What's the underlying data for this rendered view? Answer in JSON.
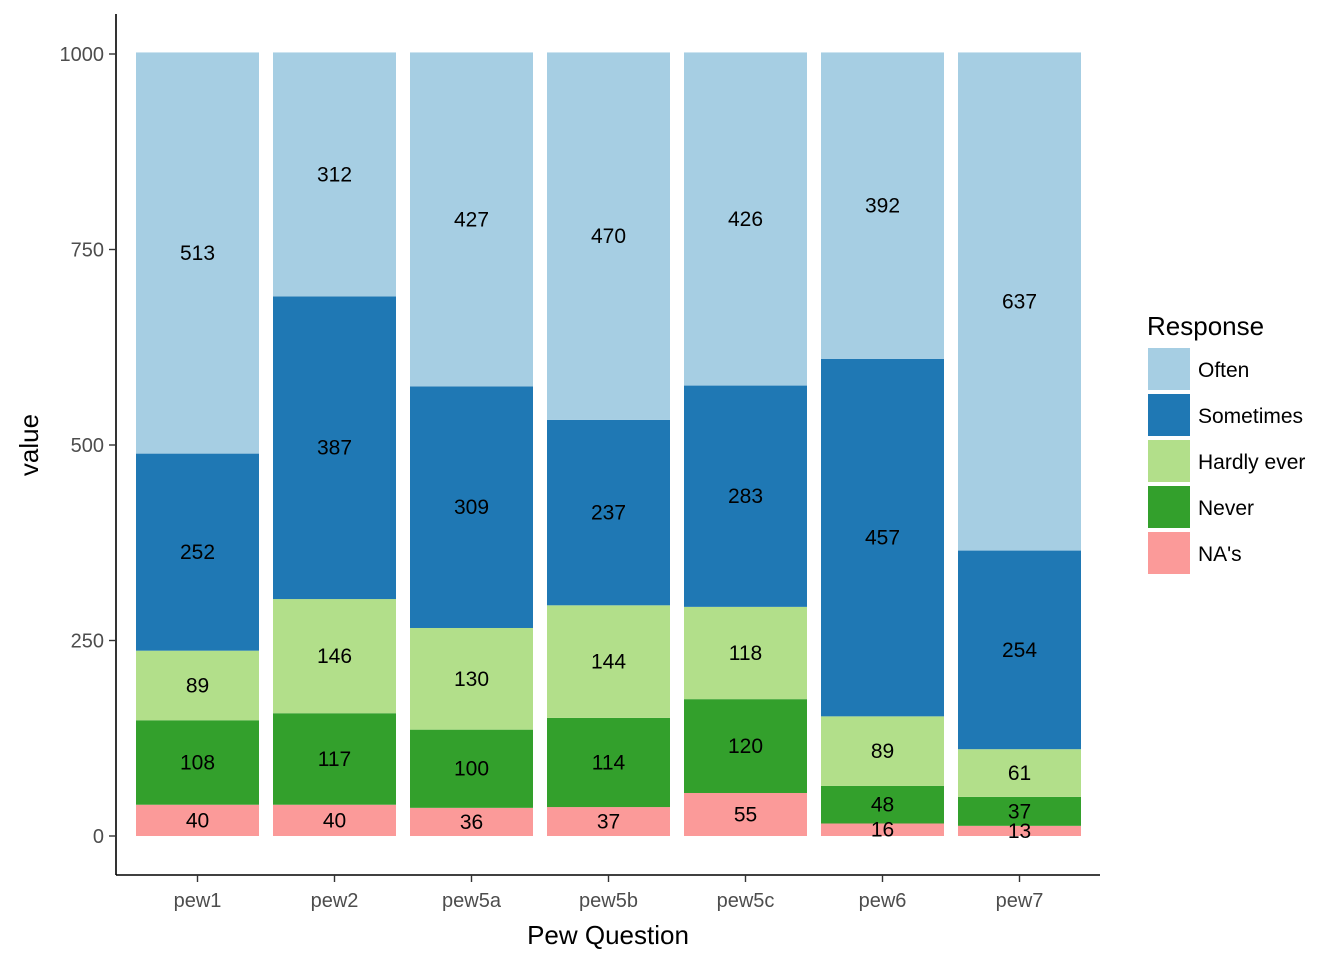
{
  "chart_data": {
    "type": "bar",
    "stacked": true,
    "categories": [
      "pew1",
      "pew2",
      "pew5a",
      "pew5b",
      "pew5c",
      "pew6",
      "pew7"
    ],
    "series": [
      {
        "name": "NA's",
        "color": "#fb9a99",
        "values": [
          40,
          40,
          36,
          37,
          55,
          16,
          13
        ]
      },
      {
        "name": "Never",
        "color": "#33a02c",
        "values": [
          108,
          117,
          100,
          114,
          120,
          48,
          37
        ]
      },
      {
        "name": "Hardly ever",
        "color": "#b2df8a",
        "values": [
          89,
          146,
          130,
          144,
          118,
          89,
          61
        ]
      },
      {
        "name": "Sometimes",
        "color": "#1f78b4",
        "values": [
          252,
          387,
          309,
          237,
          283,
          457,
          254
        ]
      },
      {
        "name": "Often",
        "color": "#a6cee3",
        "values": [
          513,
          312,
          427,
          470,
          426,
          392,
          637
        ]
      }
    ],
    "xlabel": "Pew Question",
    "ylabel": "value",
    "ylim": [
      0,
      1000
    ],
    "yticks": [
      0,
      250,
      500,
      750,
      1000
    ],
    "legend": {
      "title": "Response",
      "position": "right",
      "order": [
        "Often",
        "Sometimes",
        "Hardly ever",
        "Never",
        "NA's"
      ]
    },
    "grid": false
  }
}
